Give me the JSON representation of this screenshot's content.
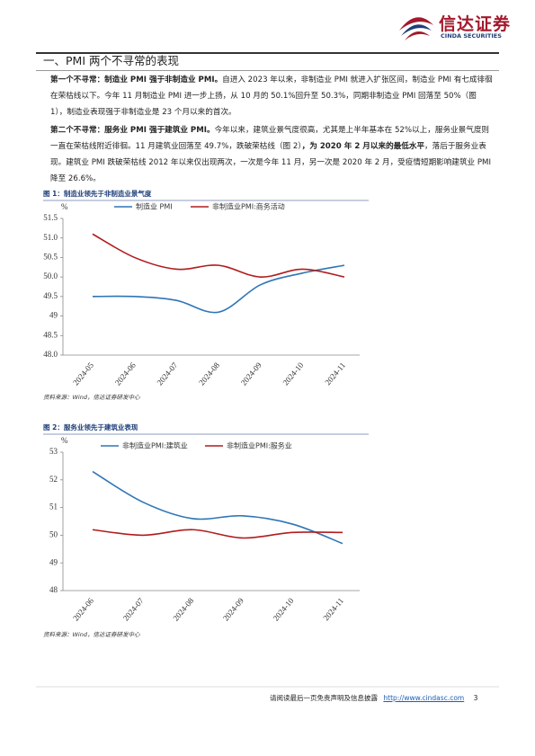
{
  "header": {
    "logo_text": "信达证券",
    "logo_subtext": "CINDA SECURITIES"
  },
  "section_title": "一、PMI 两个不寻常的表现",
  "paragraphs": [
    [
      {
        "text": "第一个不寻常：制造业 PMI 强于非制造业 PMI。",
        "bold": true
      },
      {
        "text": "自进入 2023 年以来，非制造业 PMI 就进入扩张区间，制造业 PMI 有七成徘徊在荣枯线以下。今年 11 月制造业 PMI 进一步上扬，从 10 月的 50.1%回升至 50.3%，同期非制造业 PMI 回落至 50%（图 1），制造业表现强于非制造业是 23 个月以来的首次。",
        "bold": false
      }
    ],
    [
      {
        "text": "第二个不寻常：服务业 PMI 强于建筑业 PMI。",
        "bold": true
      },
      {
        "text": "今年以来，建筑业景气度很高，尤其是上半年基本在 52%以上，服务业景气度则一直在荣枯线附近徘徊。11 月建筑业回落至 49.7%，跌破荣枯线（图 2）",
        "bold": false
      },
      {
        "text": "，为 2020 年 2 月以来的最低水平",
        "bold": true
      },
      {
        "text": "，落后于服务业表现。建筑业 PMI 跌破荣枯线 2012 年以来仅出现两次，一次是今年 11 月，另一次是 2020 年 2 月，受疫情短期影响建筑业 PMI 降至 26.6%。",
        "bold": false
      }
    ]
  ],
  "chart_data": [
    {
      "type": "line",
      "title": "图 1：制造业领先于非制造业景气度",
      "y_unit": "%",
      "categories": [
        "2024-05",
        "2024-06",
        "2024-07",
        "2024-08",
        "2024-09",
        "2024-10",
        "2024-11"
      ],
      "series": [
        {
          "name": "制造业 PMI",
          "color": "#2e75b6",
          "values": [
            49.5,
            49.5,
            49.4,
            49.1,
            49.8,
            50.1,
            50.3
          ]
        },
        {
          "name": "非制造业PMI:商务活动",
          "color": "#b01c1c",
          "values": [
            51.1,
            50.5,
            50.2,
            50.3,
            50.0,
            50.2,
            50.0
          ]
        }
      ],
      "ylim": [
        48,
        51.5
      ],
      "yticks": [
        {
          "value": 48,
          "label": "48.0"
        },
        48.5,
        49,
        {
          "value": 49.5,
          "label": "49.5"
        },
        {
          "value": 50,
          "label": "50.0"
        },
        50.5,
        {
          "value": 51,
          "label": "51.0"
        },
        51.5
      ],
      "source": "资料来源：Wind，信达证券研发中心"
    },
    {
      "type": "line",
      "title": "图 2：服务业领先于建筑业表现",
      "y_unit": "%",
      "categories": [
        "2024-06",
        "2024-07",
        "2024-08",
        "2024-09",
        "2024-10",
        "2024-11"
      ],
      "series": [
        {
          "name": "非制造业PMI:建筑业",
          "color": "#2e75b6",
          "values": [
            52.3,
            51.2,
            50.6,
            50.7,
            50.4,
            49.7
          ]
        },
        {
          "name": "非制造业PMI:服务业",
          "color": "#b01c1c",
          "values": [
            50.2,
            50.0,
            50.2,
            49.9,
            50.1,
            50.1
          ]
        }
      ],
      "ylim": [
        48,
        53
      ],
      "yticks": [
        48,
        49,
        50,
        51,
        52,
        53
      ],
      "source": "资料来源：Wind，信达证券研发中心"
    }
  ],
  "footer": {
    "notice": "请阅读最后一页免责声明及信息披露",
    "url": "http://www.cindasc.com",
    "page": "3"
  }
}
